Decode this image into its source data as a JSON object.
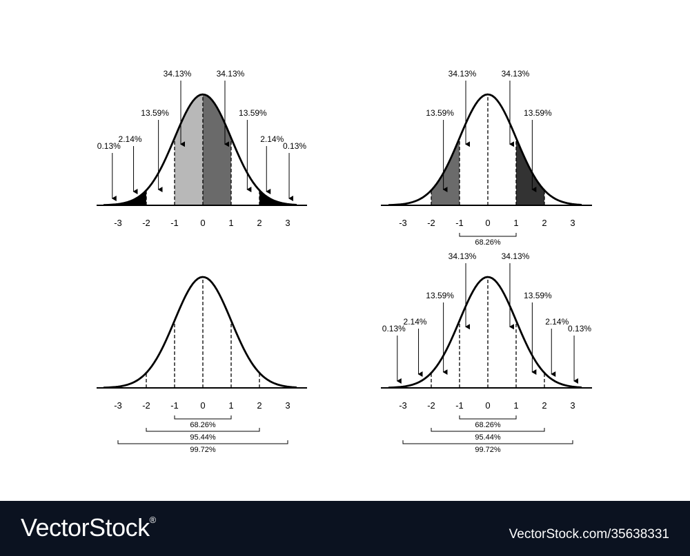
{
  "tick_labels": [
    "-3",
    "-2",
    "-1",
    "0",
    "1",
    "2",
    "3"
  ],
  "percent_labels": {
    "center": "34.13%",
    "mid": "13.59%",
    "outer": "2.14%",
    "tail": "0.13%"
  },
  "ranges": {
    "one_sigma": "68.26%",
    "two_sigma": "95.44%",
    "three_sigma": "99.72%"
  },
  "colors": {
    "center_fill": "#b8b8b8",
    "right_center_fill": "#6a6a6a",
    "mid_left_fill": "#6b6b6b",
    "mid_right_fill": "#333333",
    "tail_fill": "#000000",
    "footer_bg": "#0b1220"
  },
  "footer": {
    "brand": "VectorStock",
    "registered": "®",
    "image_ref": "VectorStock.com/35638331"
  }
}
